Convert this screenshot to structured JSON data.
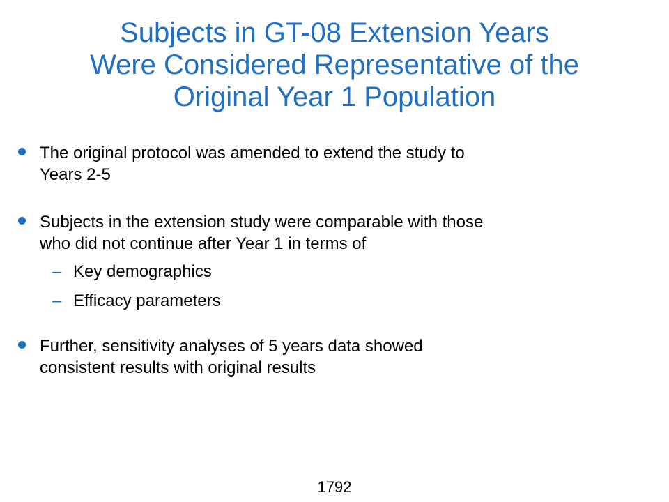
{
  "title": {
    "line1": "Subjects in GT-08 Extension Years",
    "line2": "Were Considered Representative of the",
    "line3": "Original Year 1 Population"
  },
  "bullets": [
    {
      "line1": "The original protocol was amended to extend the study to",
      "line2": "Years 2-5"
    },
    {
      "line1": "Subjects in the extension study were comparable with those",
      "line2": "who did not continue after Year 1 in terms of",
      "sub_items": [
        {
          "dash": "–",
          "text": "Key demographics"
        },
        {
          "dash": "–",
          "text": "Efficacy parameters"
        }
      ]
    },
    {
      "line1": "Further, sensitivity analyses of 5 years data showed",
      "line2": "consistent results with original results"
    }
  ],
  "page_number": "1792",
  "colors": {
    "title": "#1f6fc5",
    "bullet_marker": "#1f6fc5",
    "body_text": "#000000"
  }
}
